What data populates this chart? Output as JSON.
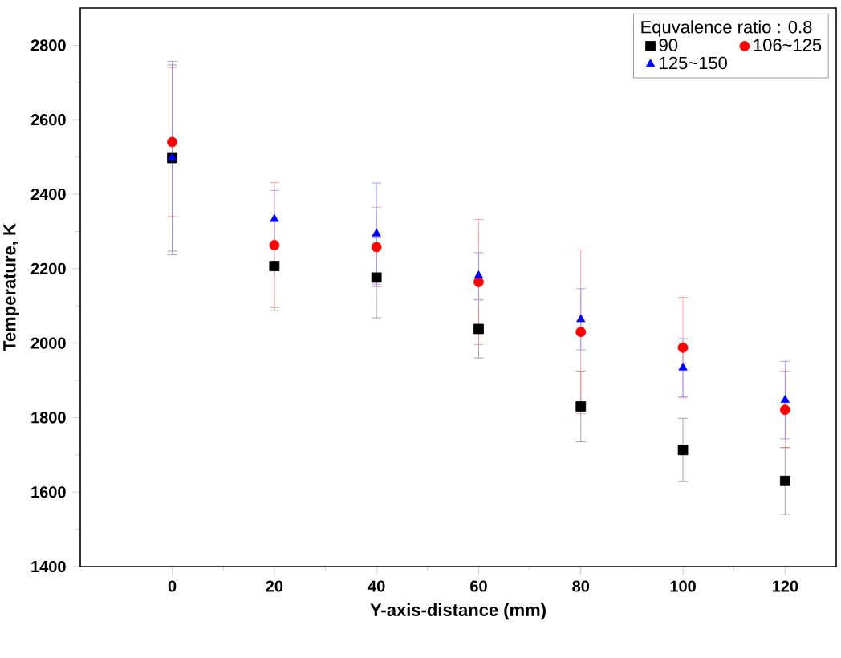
{
  "chart_data": {
    "type": "scatter",
    "xlabel": "Y-axis-distance (mm)",
    "ylabel": "Temperature,  K",
    "legend_title": "Equvalence ratio : 0.8",
    "legend": "top right",
    "grid": false,
    "x": [
      0,
      20,
      40,
      60,
      80,
      100,
      120
    ],
    "xlim": [
      -18,
      130
    ],
    "xticks": [
      0,
      20,
      40,
      60,
      80,
      100,
      120
    ],
    "ylim": [
      1400,
      2900
    ],
    "yticks": [
      1400,
      1600,
      1800,
      2000,
      2200,
      2400,
      2600,
      2800
    ],
    "series": [
      {
        "name": "90",
        "color": "#000000",
        "marker": "square",
        "values": [
          2497,
          2207,
          2176,
          2038,
          1830,
          1713,
          1630
        ],
        "errors": [
          250,
          120,
          108,
          78,
          95,
          85,
          90
        ]
      },
      {
        "name": "106~125",
        "color": "#ff0000",
        "marker": "circle",
        "values": [
          2540,
          2263,
          2258,
          2164,
          2030,
          1988,
          1821
        ],
        "errors": [
          200,
          168,
          107,
          168,
          220,
          135,
          104
        ]
      },
      {
        "name": "125~150",
        "color": "#0000ff",
        "marker": "triangle",
        "values": [
          2497,
          2333,
          2294,
          2181,
          2064,
          1934,
          1847
        ],
        "errors": [
          260,
          77,
          136,
          62,
          82,
          78,
          104
        ]
      }
    ]
  }
}
